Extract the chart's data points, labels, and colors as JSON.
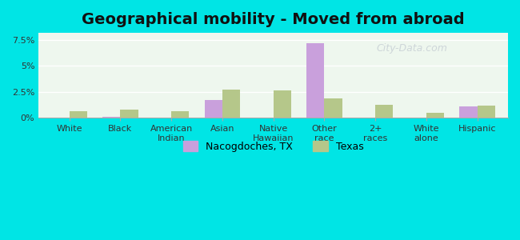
{
  "title": "Geographical mobility - Moved from abroad",
  "categories": [
    "White",
    "Black",
    "American\nIndian",
    "Asian",
    "Native\nHawaiian",
    "Other\nrace",
    "2+\nraces",
    "White\nalone",
    "Hispanic"
  ],
  "nacogdoches_values": [
    0.0,
    0.1,
    0.0,
    1.7,
    0.0,
    7.2,
    0.0,
    0.0,
    1.1
  ],
  "texas_values": [
    0.6,
    0.8,
    0.6,
    2.7,
    2.65,
    1.85,
    1.25,
    0.5,
    1.2
  ],
  "nacogdoches_color": "#c9a0dc",
  "texas_color": "#b5c78a",
  "ylim": [
    0,
    8.2
  ],
  "yticks": [
    0,
    2.5,
    5.0,
    7.5
  ],
  "ytick_labels": [
    "0%",
    "2.5%",
    "5%",
    "7.5%"
  ],
  "background_top": "#e8f5e8",
  "background_bottom": "#f0faf0",
  "outer_bg": "#00e5e5",
  "bar_width": 0.35,
  "title_fontsize": 14,
  "legend_nacogdoches": "Nacogdoches, TX",
  "legend_texas": "Texas"
}
